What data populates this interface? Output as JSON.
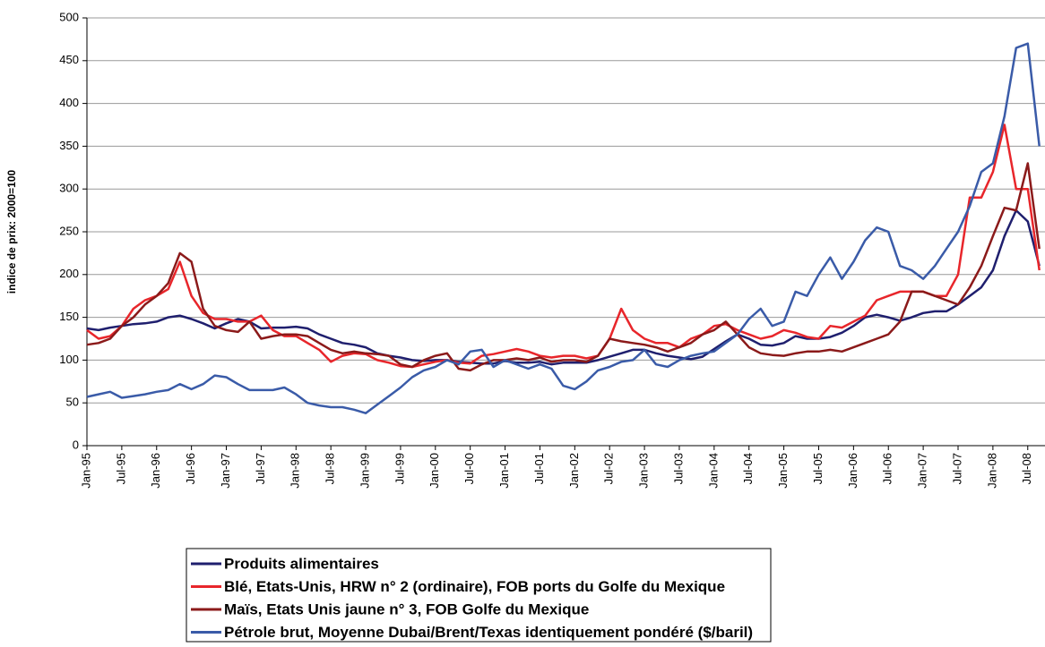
{
  "chart_data": {
    "type": "line",
    "ylabel": "indice de prix: 2000=100",
    "categories": [
      "Jan-95",
      null,
      null,
      "Jul-95",
      null,
      null,
      "Jan-96",
      null,
      null,
      "Jul-96",
      null,
      null,
      "Jan-97",
      null,
      null,
      "Jul-97",
      null,
      null,
      "Jan-98",
      null,
      null,
      "Jul-98",
      null,
      null,
      "Jan-99",
      null,
      null,
      "Jul-99",
      null,
      null,
      "Jan-00",
      null,
      null,
      "Jul-00",
      null,
      null,
      "Jan-01",
      null,
      null,
      "Jul-01",
      null,
      null,
      "Jan-02",
      null,
      null,
      "Jul-02",
      null,
      null,
      "Jan-03",
      null,
      null,
      "Jul-03",
      null,
      null,
      "Jan-04",
      null,
      null,
      "Jul-04",
      null,
      null,
      "Jan-05",
      null,
      null,
      "Jul-05",
      null,
      null,
      "Jan-06",
      null,
      null,
      "Jul-06",
      null,
      null,
      "Jan-07",
      null,
      null,
      "Jul-07",
      null,
      null,
      "Jan-08",
      null,
      null,
      "Jul-08",
      null
    ],
    "series": [
      {
        "name": "Produits alimentaires",
        "color": "#1f1f6e",
        "values": [
          137,
          135,
          138,
          140,
          142,
          143,
          145,
          150,
          152,
          148,
          143,
          137,
          143,
          148,
          145,
          137,
          138,
          138,
          139,
          137,
          130,
          125,
          120,
          118,
          115,
          108,
          105,
          103,
          100,
          99,
          100,
          100,
          98,
          97,
          96,
          96,
          99,
          97,
          97,
          98,
          95,
          97,
          97,
          97,
          100,
          104,
          108,
          112,
          112,
          108,
          105,
          103,
          101,
          104,
          113,
          122,
          130,
          125,
          118,
          117,
          120,
          128,
          125,
          125,
          127,
          132,
          140,
          150,
          153,
          150,
          146,
          150,
          155,
          157,
          157,
          165,
          175,
          185,
          205,
          245,
          275,
          262,
          210
        ]
      },
      {
        "name": "Blé, Etats-Unis, HRW n° 2 (ordinaire), FOB ports du Golfe du Mexique",
        "color": "#e8262b",
        "values": [
          135,
          125,
          128,
          140,
          160,
          170,
          175,
          183,
          215,
          175,
          155,
          148,
          148,
          145,
          145,
          152,
          135,
          128,
          128,
          120,
          112,
          98,
          105,
          108,
          107,
          100,
          97,
          93,
          92,
          95,
          98,
          100,
          97,
          96,
          105,
          107,
          110,
          113,
          110,
          105,
          103,
          105,
          105,
          102,
          105,
          125,
          160,
          135,
          125,
          120,
          120,
          115,
          125,
          130,
          140,
          142,
          135,
          130,
          125,
          128,
          135,
          132,
          127,
          125,
          140,
          138,
          145,
          152,
          170,
          175,
          180,
          180,
          180,
          175,
          175,
          200,
          290,
          290,
          320,
          375,
          300,
          300,
          205
        ]
      },
      {
        "name": "Maïs, Etats Unis jaune n° 3, FOB Golfe du Mexique",
        "color": "#8b1a1a",
        "values": [
          118,
          120,
          125,
          140,
          150,
          165,
          175,
          190,
          225,
          215,
          160,
          140,
          135,
          133,
          145,
          125,
          128,
          130,
          130,
          128,
          120,
          112,
          108,
          110,
          108,
          107,
          105,
          95,
          92,
          100,
          105,
          108,
          90,
          88,
          95,
          100,
          100,
          102,
          100,
          103,
          98,
          100,
          100,
          98,
          105,
          125,
          122,
          120,
          118,
          115,
          110,
          115,
          120,
          130,
          135,
          145,
          130,
          115,
          108,
          106,
          105,
          108,
          110,
          110,
          112,
          110,
          115,
          120,
          125,
          130,
          145,
          180,
          180,
          175,
          170,
          165,
          185,
          210,
          245,
          278,
          275,
          330,
          230
        ]
      },
      {
        "name": "Pétrole brut, Moyenne Dubai/Brent/Texas identiquement pondéré ($/baril)",
        "color": "#3a5ba8",
        "values": [
          57,
          60,
          63,
          56,
          58,
          60,
          63,
          65,
          72,
          66,
          72,
          82,
          80,
          72,
          65,
          65,
          65,
          68,
          60,
          50,
          47,
          45,
          45,
          42,
          38,
          48,
          58,
          68,
          80,
          88,
          92,
          100,
          95,
          110,
          112,
          92,
          100,
          95,
          90,
          95,
          90,
          70,
          66,
          75,
          88,
          92,
          98,
          100,
          112,
          95,
          92,
          100,
          105,
          108,
          110,
          120,
          130,
          148,
          160,
          140,
          145,
          180,
          175,
          200,
          220,
          195,
          215,
          240,
          255,
          250,
          210,
          205,
          195,
          210,
          230,
          250,
          280,
          320,
          330,
          385,
          465,
          470,
          350
        ]
      }
    ],
    "ylim": [
      0,
      500
    ],
    "yticks": [
      0,
      50,
      100,
      150,
      200,
      250,
      300,
      350,
      400,
      450,
      500
    ],
    "grid": true
  }
}
